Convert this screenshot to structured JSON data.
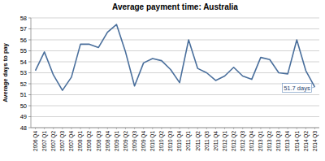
{
  "chart_data": {
    "type": "line",
    "title": "Average payment time: Australia",
    "y_label": "Average days to pay",
    "annotation": "51.7 days",
    "categories": [
      "2006 Q4",
      "2007 Q1",
      "2007 Q2",
      "2007 Q3",
      "2007 Q4",
      "2008 Q1",
      "2008 Q2",
      "2008 Q3",
      "2008 Q4",
      "2009 Q1",
      "2009 Q2",
      "2009 Q3",
      "2009 Q4",
      "2010 Q1",
      "2010 Q2",
      "2010 Q3",
      "2010 Q4",
      "2011 Q1",
      "2011 Q2",
      "2011 Q3",
      "2011 Q4",
      "2012 Q1",
      "2012 Q2",
      "2012 Q3",
      "2012 Q4",
      "2013 Q1",
      "2013 Q2",
      "2013 Q3",
      "2013 Q4",
      "2014 Q1",
      "2014 Q2",
      "2014 Q3"
    ],
    "values": [
      53.2,
      54.9,
      52.8,
      51.4,
      52.6,
      55.6,
      55.6,
      55.3,
      56.7,
      57.4,
      54.9,
      51.8,
      53.9,
      54.3,
      54.1,
      53.3,
      52.1,
      56.0,
      53.4,
      53.0,
      52.3,
      52.7,
      53.5,
      52.7,
      52.4,
      54.4,
      54.2,
      53.0,
      52.9,
      56.0,
      53.2,
      51.7
    ],
    "color": "#4a6f9c",
    "ylim": [
      48,
      58
    ],
    "yticks": [
      48,
      49,
      50,
      51,
      52,
      53,
      54,
      55,
      56,
      57,
      58
    ],
    "grid": true
  }
}
